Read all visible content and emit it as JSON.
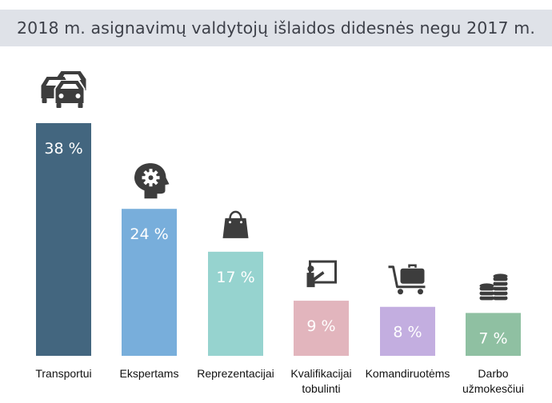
{
  "title": "2018 m. asignavimų valdytojų išlaidos didesnės negu 2017 m.",
  "chart_data": {
    "type": "bar",
    "title": "2018 m. asignavimų valdytojų išlaidos didesnės negu 2017 m.",
    "categories": [
      [
        "Transportui"
      ],
      [
        "Ekspertams"
      ],
      [
        "Reprezentacijai"
      ],
      [
        "Kvalifikacijai",
        "tobulinti"
      ],
      [
        "Komandiruotėms"
      ],
      [
        "Darbo",
        "užmokesčiui"
      ]
    ],
    "values": [
      38,
      24,
      17,
      9,
      8,
      7
    ],
    "value_labels": [
      "38 %",
      "24 %",
      "17 %",
      "9 %",
      "8 %",
      "7 %"
    ],
    "colors": [
      "#43667f",
      "#78aedb",
      "#96d3cf",
      "#e2b5bd",
      "#c3aee0",
      "#8fc0a2"
    ],
    "icons": [
      "cars-icon",
      "brain-gear-icon",
      "shopping-bag-icon",
      "presentation-icon",
      "luggage-cart-icon",
      "coins-icon"
    ],
    "icon_color": "#3d3d3d",
    "ylim": [
      0,
      38
    ],
    "grid": false,
    "legend": "none"
  }
}
